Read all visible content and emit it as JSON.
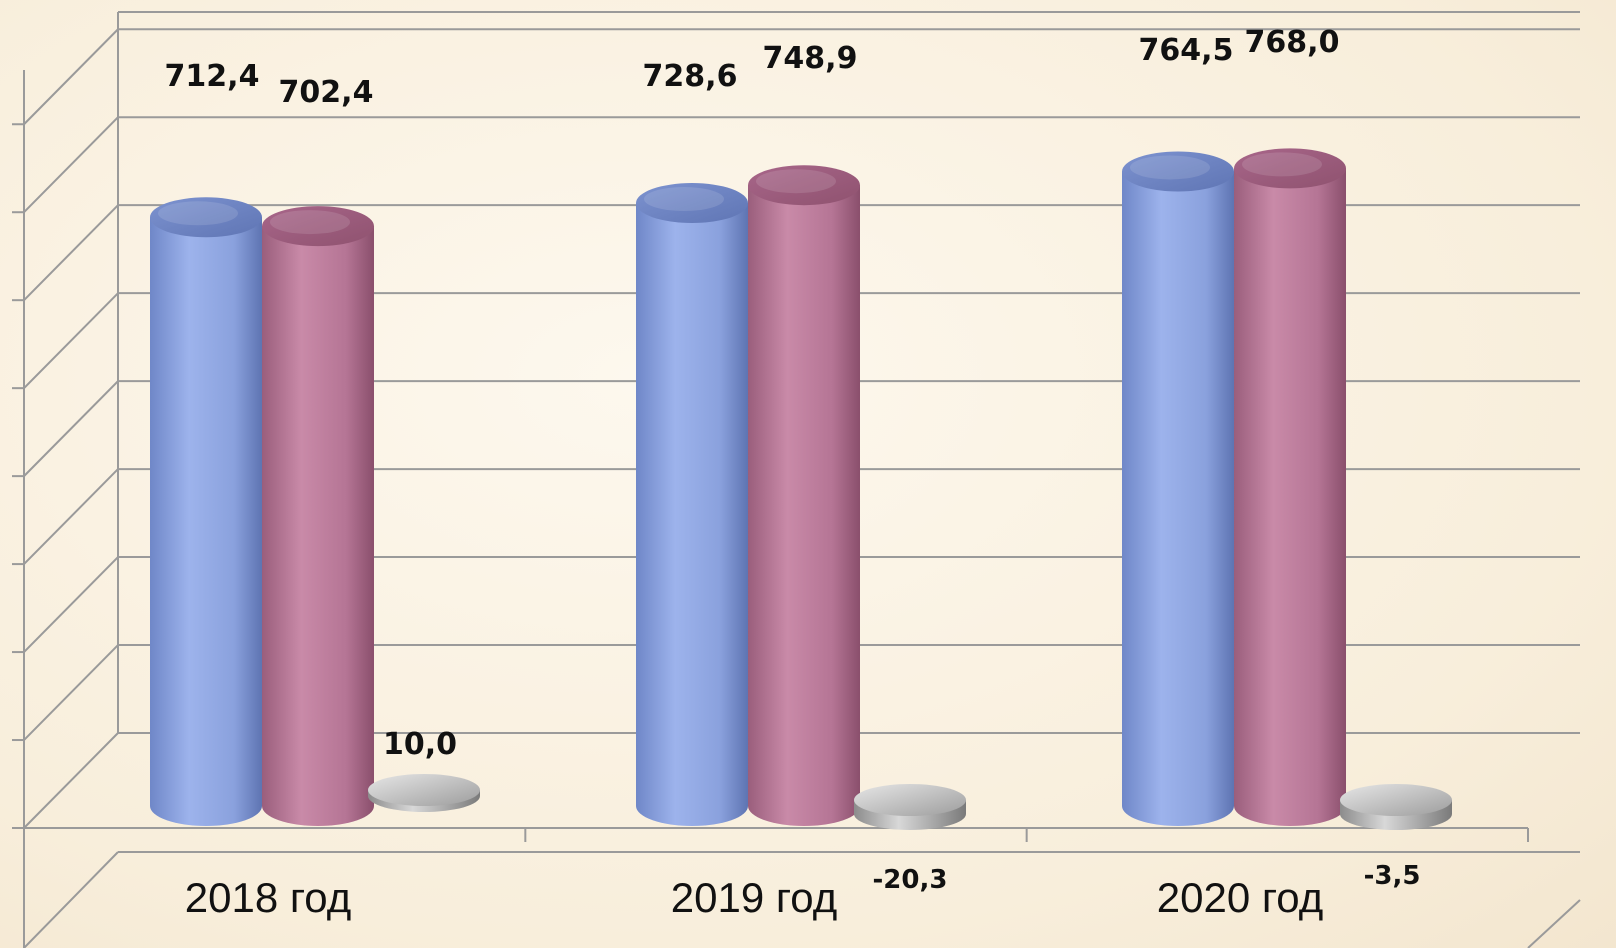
{
  "chart_data": {
    "type": "bar",
    "style": "3d-cylinder",
    "categories": [
      "2018 год",
      "2019 год",
      "2020 год"
    ],
    "series": [
      {
        "color": "#8ca4e0",
        "values": [
          712.4,
          728.6,
          764.5
        ],
        "labels": [
          "712,4",
          "728,6",
          "764,5"
        ]
      },
      {
        "color": "#b87a98",
        "values": [
          702.4,
          748.9,
          768.0
        ],
        "labels": [
          "702,4",
          "748,9",
          "768,0"
        ]
      },
      {
        "color": "#b5b5b5",
        "values": [
          10.0,
          -20.3,
          -3.5
        ],
        "labels": [
          "10,0",
          "-20,3",
          "-3,5"
        ]
      }
    ],
    "ylim": [
      0,
      800
    ],
    "grid": true,
    "legend": "none"
  }
}
